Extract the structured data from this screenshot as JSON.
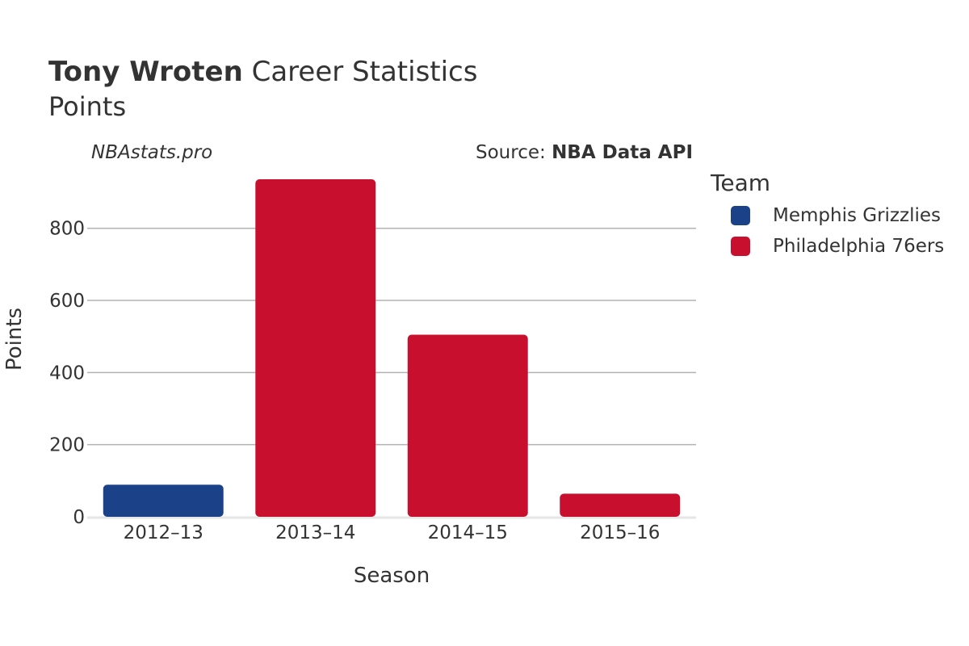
{
  "header": {
    "title_bold": "Tony Wroten",
    "title_rest": "Career Statistics",
    "subtitle": "Points",
    "watermark": "NBAstats.pro",
    "source_prefix": "Source: ",
    "source_bold": "NBA Data API"
  },
  "legend": {
    "title": "Team",
    "items": [
      {
        "label": "Memphis Grizzlies",
        "color": "#1b4189"
      },
      {
        "label": "Philadelphia 76ers",
        "color": "#c8102e"
      }
    ]
  },
  "chart_data": {
    "type": "bar",
    "categories": [
      "2012–13",
      "2013–14",
      "2014–15",
      "2015–16"
    ],
    "values": [
      89,
      936,
      505,
      64
    ],
    "teams": [
      "Memphis Grizzlies",
      "Philadelphia 76ers",
      "Philadelphia 76ers",
      "Philadelphia 76ers"
    ],
    "xlabel": "Season",
    "ylabel": "Points",
    "ylim": [
      0,
      936
    ],
    "yticks": [
      0,
      200,
      400,
      600,
      800
    ],
    "grid": true,
    "legend_position": "right"
  }
}
